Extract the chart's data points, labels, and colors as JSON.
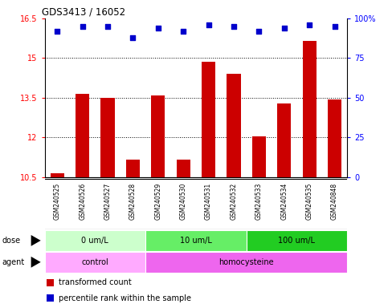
{
  "title": "GDS3413 / 16052",
  "samples": [
    "GSM240525",
    "GSM240526",
    "GSM240527",
    "GSM240528",
    "GSM240529",
    "GSM240530",
    "GSM240531",
    "GSM240532",
    "GSM240533",
    "GSM240534",
    "GSM240535",
    "GSM240848"
  ],
  "bar_values": [
    10.65,
    13.65,
    13.5,
    11.15,
    13.6,
    11.15,
    14.85,
    14.4,
    12.05,
    13.3,
    15.65,
    13.45
  ],
  "dot_values": [
    92,
    95,
    95,
    88,
    94,
    92,
    96,
    95,
    92,
    94,
    96,
    95
  ],
  "bar_color": "#cc0000",
  "dot_color": "#0000cc",
  "ylim_left": [
    10.5,
    16.5
  ],
  "ylim_right": [
    0,
    100
  ],
  "yticks_left": [
    10.5,
    12.0,
    13.5,
    15.0,
    16.5
  ],
  "yticks_right": [
    0,
    25,
    50,
    75,
    100
  ],
  "ytick_labels_left": [
    "10.5",
    "12",
    "13.5",
    "15",
    "16.5"
  ],
  "ytick_labels_right": [
    "0",
    "25",
    "50",
    "75",
    "100%"
  ],
  "hlines": [
    12.0,
    13.5,
    15.0
  ],
  "dose_groups": [
    {
      "label": "0 um/L",
      "start": 0,
      "end": 4,
      "color": "#ccffcc"
    },
    {
      "label": "10 um/L",
      "start": 4,
      "end": 8,
      "color": "#66ee66"
    },
    {
      "label": "100 um/L",
      "start": 8,
      "end": 12,
      "color": "#22cc22"
    }
  ],
  "agent_groups": [
    {
      "label": "control",
      "start": 0,
      "end": 4,
      "color": "#ffaaff"
    },
    {
      "label": "homocysteine",
      "start": 4,
      "end": 12,
      "color": "#ee66ee"
    }
  ],
  "legend_bar_label": "transformed count",
  "legend_dot_label": "percentile rank within the sample",
  "dose_label": "dose",
  "agent_label": "agent",
  "bg_color": "#ffffff",
  "sample_bg_color": "#cccccc",
  "grid_color": "#000000"
}
